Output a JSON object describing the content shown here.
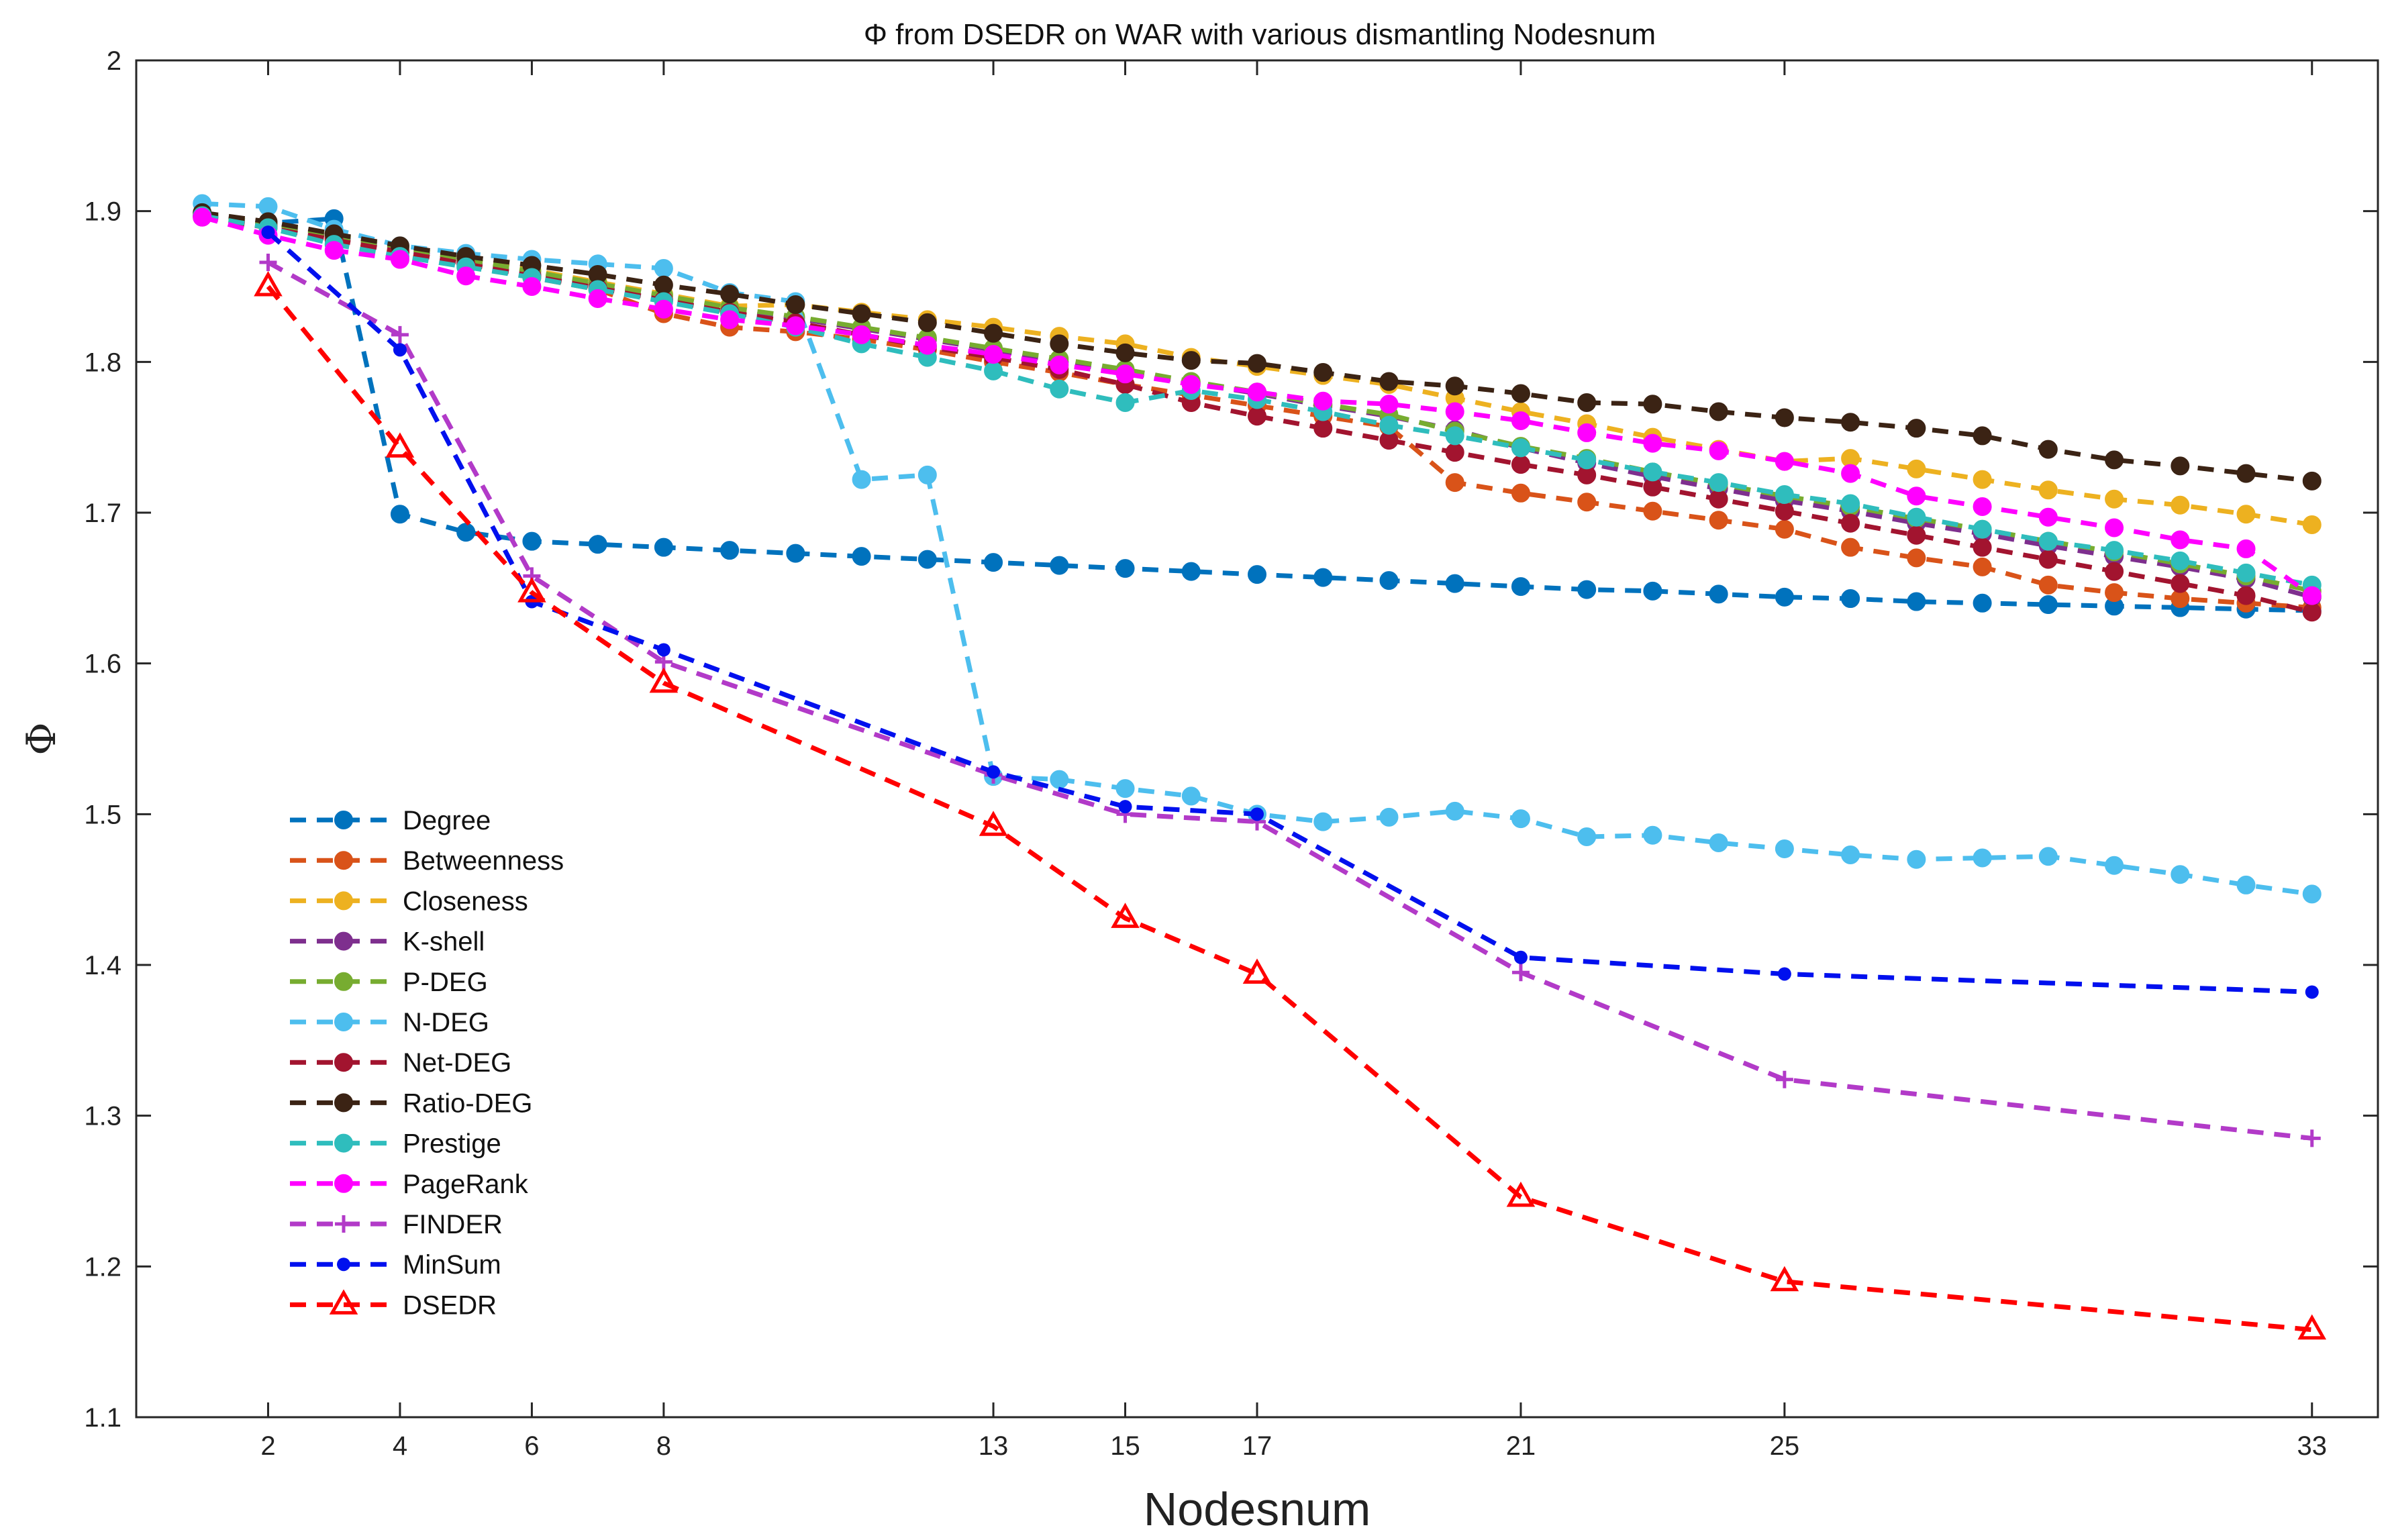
{
  "chart_data": {
    "type": "line",
    "title": "Φ from DSEDR on WAR with various dismantling Nodesnum",
    "xlabel": "Nodesnum",
    "ylabel": "Φ",
    "xlim": [
      0,
      34
    ],
    "ylim": [
      1.1,
      2.0
    ],
    "xticks": [
      "2",
      "4",
      "6",
      "8",
      "13",
      "15",
      "17",
      "21",
      "25",
      "33"
    ],
    "yticks": [
      "1.1",
      "1.2",
      "1.3",
      "1.4",
      "1.5",
      "1.6",
      "1.7",
      "1.8",
      "1.9",
      "2"
    ],
    "legend_position": "lower-left",
    "series": [
      {
        "name": "Degree",
        "color": "#0072BD",
        "marker": "circle",
        "x": [
          1,
          2,
          3,
          4,
          5,
          6,
          7,
          8,
          9,
          10,
          11,
          12,
          13,
          14,
          15,
          16,
          17,
          18,
          19,
          20,
          21,
          22,
          23,
          24,
          25,
          26,
          27,
          28,
          29,
          30,
          31,
          32,
          33
        ],
        "values": [
          1.897,
          1.892,
          1.895,
          1.699,
          1.687,
          1.681,
          1.679,
          1.677,
          1.675,
          1.673,
          1.671,
          1.669,
          1.667,
          1.665,
          1.663,
          1.661,
          1.659,
          1.657,
          1.655,
          1.653,
          1.651,
          1.649,
          1.648,
          1.646,
          1.644,
          1.643,
          1.641,
          1.64,
          1.639,
          1.638,
          1.637,
          1.636,
          1.635
        ]
      },
      {
        "name": "Betweenness",
        "color": "#D95319",
        "marker": "circle",
        "x": [
          1,
          2,
          3,
          4,
          5,
          6,
          7,
          8,
          9,
          10,
          11,
          12,
          13,
          14,
          15,
          16,
          17,
          18,
          19,
          20,
          21,
          22,
          23,
          24,
          25,
          26,
          27,
          28,
          29,
          30,
          31,
          32,
          33
        ],
        "values": [
          1.897,
          1.89,
          1.882,
          1.873,
          1.865,
          1.856,
          1.848,
          1.832,
          1.823,
          1.82,
          1.815,
          1.808,
          1.8,
          1.793,
          1.785,
          1.778,
          1.771,
          1.764,
          1.757,
          1.72,
          1.713,
          1.707,
          1.701,
          1.695,
          1.689,
          1.677,
          1.67,
          1.664,
          1.652,
          1.647,
          1.643,
          1.64,
          1.637
        ]
      },
      {
        "name": "Closeness",
        "color": "#EDB120",
        "marker": "circle",
        "x": [
          1,
          2,
          3,
          4,
          5,
          6,
          7,
          8,
          9,
          10,
          11,
          12,
          13,
          14,
          15,
          16,
          17,
          18,
          19,
          20,
          21,
          22,
          23,
          24,
          25,
          26,
          27,
          28,
          29,
          30,
          31,
          32,
          33
        ],
        "values": [
          1.898,
          1.892,
          1.884,
          1.876,
          1.868,
          1.861,
          1.853,
          1.845,
          1.837,
          1.838,
          1.833,
          1.828,
          1.823,
          1.817,
          1.812,
          1.803,
          1.797,
          1.791,
          1.785,
          1.776,
          1.767,
          1.759,
          1.75,
          1.742,
          1.734,
          1.736,
          1.729,
          1.722,
          1.715,
          1.709,
          1.705,
          1.699,
          1.692
        ]
      },
      {
        "name": "K-shell",
        "color": "#7E2F8E",
        "marker": "circle",
        "x": [
          1,
          2,
          3,
          4,
          5,
          6,
          7,
          8,
          9,
          10,
          11,
          12,
          13,
          14,
          15,
          16,
          17,
          18,
          19,
          20,
          21,
          22,
          23,
          24,
          25,
          26,
          27,
          28,
          29,
          30,
          31,
          32,
          33
        ],
        "values": [
          1.897,
          1.891,
          1.883,
          1.875,
          1.866,
          1.858,
          1.85,
          1.841,
          1.833,
          1.829,
          1.822,
          1.815,
          1.808,
          1.8,
          1.793,
          1.786,
          1.779,
          1.771,
          1.764,
          1.755,
          1.743,
          1.733,
          1.724,
          1.716,
          1.708,
          1.701,
          1.693,
          1.686,
          1.678,
          1.671,
          1.664,
          1.656,
          1.644
        ]
      },
      {
        "name": "P-DEG",
        "color": "#77AC30",
        "marker": "circle",
        "x": [
          1,
          2,
          3,
          4,
          5,
          6,
          7,
          8,
          9,
          10,
          11,
          12,
          13,
          14,
          15,
          16,
          17,
          18,
          19,
          20,
          21,
          22,
          23,
          24,
          25,
          26,
          27,
          28,
          29,
          30,
          31,
          32,
          33
        ],
        "values": [
          1.898,
          1.892,
          1.884,
          1.876,
          1.868,
          1.86,
          1.852,
          1.844,
          1.836,
          1.83,
          1.823,
          1.816,
          1.809,
          1.802,
          1.795,
          1.787,
          1.78,
          1.772,
          1.765,
          1.754,
          1.744,
          1.736,
          1.727,
          1.719,
          1.711,
          1.704,
          1.696,
          1.689,
          1.681,
          1.674,
          1.666,
          1.658,
          1.648
        ]
      },
      {
        "name": "N-DEG",
        "color": "#4DBEEE",
        "marker": "circle",
        "x": [
          1,
          2,
          3,
          4,
          5,
          6,
          7,
          8,
          9,
          10,
          11,
          12,
          13,
          14,
          15,
          16,
          17,
          18,
          19,
          20,
          21,
          22,
          23,
          24,
          25,
          26,
          27,
          28,
          29,
          30,
          31,
          32,
          33
        ],
        "values": [
          1.905,
          1.903,
          1.888,
          1.877,
          1.872,
          1.868,
          1.865,
          1.862,
          1.846,
          1.84,
          1.722,
          1.725,
          1.525,
          1.523,
          1.517,
          1.512,
          1.5,
          1.495,
          1.498,
          1.502,
          1.497,
          1.485,
          1.486,
          1.481,
          1.477,
          1.473,
          1.47,
          1.471,
          1.472,
          1.466,
          1.46,
          1.453,
          1.447
        ]
      },
      {
        "name": "Net-DEG",
        "color": "#A2142F",
        "marker": "circle",
        "x": [
          1,
          2,
          3,
          4,
          5,
          6,
          7,
          8,
          9,
          10,
          11,
          12,
          13,
          14,
          15,
          16,
          17,
          18,
          19,
          20,
          21,
          22,
          23,
          24,
          25,
          26,
          27,
          28,
          29,
          30,
          31,
          32,
          33
        ],
        "values": [
          1.896,
          1.889,
          1.881,
          1.873,
          1.865,
          1.857,
          1.849,
          1.841,
          1.833,
          1.826,
          1.818,
          1.81,
          1.803,
          1.795,
          1.785,
          1.773,
          1.764,
          1.756,
          1.748,
          1.74,
          1.732,
          1.725,
          1.717,
          1.709,
          1.701,
          1.693,
          1.685,
          1.677,
          1.669,
          1.661,
          1.653,
          1.645,
          1.634
        ]
      },
      {
        "name": "Ratio-DEG",
        "color": "#3B2314",
        "marker": "circle",
        "x": [
          1,
          2,
          3,
          4,
          5,
          6,
          7,
          8,
          9,
          10,
          11,
          12,
          13,
          14,
          15,
          16,
          17,
          18,
          19,
          20,
          21,
          22,
          23,
          24,
          25,
          26,
          27,
          28,
          29,
          30,
          31,
          32,
          33
        ],
        "values": [
          1.899,
          1.893,
          1.885,
          1.877,
          1.87,
          1.864,
          1.858,
          1.851,
          1.845,
          1.838,
          1.832,
          1.826,
          1.819,
          1.812,
          1.806,
          1.801,
          1.799,
          1.793,
          1.787,
          1.784,
          1.779,
          1.773,
          1.772,
          1.767,
          1.763,
          1.76,
          1.756,
          1.751,
          1.742,
          1.735,
          1.731,
          1.726,
          1.721
        ]
      },
      {
        "name": "Prestige",
        "color": "#2FBDBD",
        "marker": "circle",
        "x": [
          1,
          2,
          3,
          4,
          5,
          6,
          7,
          8,
          9,
          10,
          11,
          12,
          13,
          14,
          15,
          16,
          17,
          18,
          19,
          20,
          21,
          22,
          23,
          24,
          25,
          26,
          27,
          28,
          29,
          30,
          31,
          32,
          33
        ],
        "values": [
          1.897,
          1.889,
          1.878,
          1.87,
          1.863,
          1.856,
          1.848,
          1.84,
          1.832,
          1.823,
          1.812,
          1.803,
          1.794,
          1.782,
          1.773,
          1.781,
          1.775,
          1.767,
          1.758,
          1.751,
          1.743,
          1.735,
          1.727,
          1.72,
          1.712,
          1.706,
          1.697,
          1.689,
          1.681,
          1.675,
          1.668,
          1.66,
          1.652
        ]
      },
      {
        "name": "PageRank",
        "color": "#FF00FF",
        "marker": "circle",
        "x": [
          1,
          2,
          3,
          4,
          5,
          6,
          7,
          8,
          9,
          10,
          11,
          12,
          13,
          14,
          15,
          16,
          17,
          18,
          19,
          20,
          21,
          22,
          23,
          24,
          25,
          26,
          27,
          28,
          29,
          30,
          31,
          32,
          33
        ],
        "values": [
          1.896,
          1.884,
          1.874,
          1.868,
          1.857,
          1.85,
          1.842,
          1.835,
          1.828,
          1.824,
          1.818,
          1.811,
          1.805,
          1.798,
          1.792,
          1.785,
          1.78,
          1.774,
          1.772,
          1.767,
          1.761,
          1.753,
          1.746,
          1.741,
          1.734,
          1.726,
          1.711,
          1.704,
          1.697,
          1.69,
          1.682,
          1.676,
          1.645
        ]
      },
      {
        "name": "FINDER",
        "color": "#B23AC8",
        "marker": "plus",
        "x": [
          2,
          4,
          6,
          8,
          13,
          15,
          17,
          21,
          25,
          33
        ],
        "values": [
          1.866,
          1.818,
          1.658,
          1.601,
          1.526,
          1.5,
          1.495,
          1.395,
          1.324,
          1.285
        ]
      },
      {
        "name": "MinSum",
        "color": "#0010EE",
        "marker": "dot",
        "x": [
          2,
          4,
          6,
          8,
          13,
          15,
          17,
          21,
          25,
          33
        ],
        "values": [
          1.886,
          1.808,
          1.641,
          1.609,
          1.528,
          1.505,
          1.5,
          1.405,
          1.394,
          1.382
        ]
      },
      {
        "name": "DSEDR",
        "color": "#FF0000",
        "marker": "triangle",
        "x": [
          2,
          4,
          6,
          8,
          13,
          15,
          17,
          21,
          25,
          33
        ],
        "values": [
          1.85,
          1.743,
          1.647,
          1.587,
          1.492,
          1.431,
          1.394,
          1.246,
          1.19,
          1.158
        ]
      }
    ]
  }
}
